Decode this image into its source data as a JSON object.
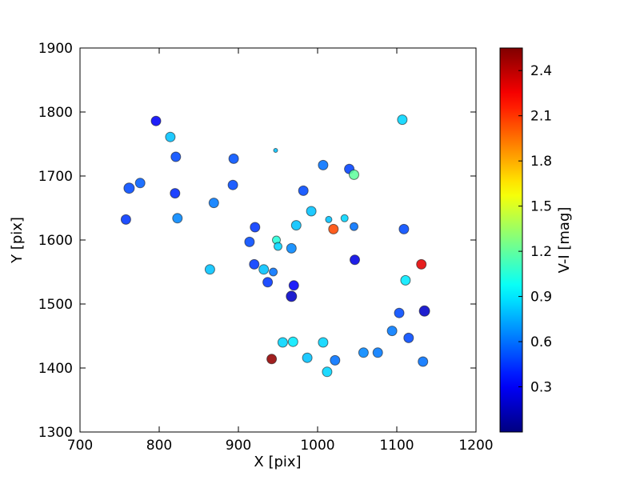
{
  "figure": {
    "background": "#ffffff",
    "text_color": "#000000",
    "axis_color": "#000000"
  },
  "chart_data": {
    "type": "scatter",
    "title": "",
    "xlabel": "X [pix]",
    "ylabel": "Y [pix]",
    "xlim": [
      700,
      1200
    ],
    "ylim": [
      1300,
      1900
    ],
    "xticks": [
      700,
      800,
      900,
      1000,
      1100,
      1200
    ],
    "yticks": [
      1300,
      1400,
      1500,
      1600,
      1700,
      1800,
      1900
    ],
    "grid": false,
    "legend": "none",
    "colorbar": {
      "label": "V-I [mag]",
      "ticks": [
        0.3,
        0.6,
        0.9,
        1.2,
        1.5,
        1.8,
        2.1,
        2.4
      ],
      "vmin": 0.0,
      "vmax": 2.55,
      "colormap": "jet",
      "position": "right"
    },
    "marker": {
      "shape": "circle",
      "edge_color": "#1a1a1a",
      "edge_opacity": 0.6,
      "fill_opacity": 0.88
    },
    "points_format": [
      "x_pix",
      "y_pix",
      "v_i_mag",
      "radius_px"
    ],
    "points": [
      [
        796,
        1786,
        0.3,
        6
      ],
      [
        814,
        1761,
        0.8,
        6
      ],
      [
        821,
        1730,
        0.5,
        6
      ],
      [
        776,
        1689,
        0.55,
        6
      ],
      [
        762,
        1681,
        0.5,
        6.5
      ],
      [
        820,
        1673,
        0.42,
        6
      ],
      [
        823,
        1634,
        0.65,
        6
      ],
      [
        758,
        1632,
        0.45,
        6
      ],
      [
        894,
        1727,
        0.52,
        6
      ],
      [
        893,
        1686,
        0.5,
        6
      ],
      [
        869,
        1658,
        0.62,
        6
      ],
      [
        864,
        1554,
        0.8,
        6
      ],
      [
        947,
        1740,
        0.8,
        2.5
      ],
      [
        1007,
        1717,
        0.6,
        6
      ],
      [
        1040,
        1711,
        0.48,
        6
      ],
      [
        1046,
        1702,
        1.2,
        6
      ],
      [
        982,
        1677,
        0.5,
        6
      ],
      [
        992,
        1645,
        0.8,
        6
      ],
      [
        1034,
        1634,
        0.85,
        4.5
      ],
      [
        1014,
        1632,
        0.8,
        4
      ],
      [
        973,
        1623,
        0.8,
        6
      ],
      [
        1020,
        1617,
        2.05,
        6
      ],
      [
        1046,
        1621,
        0.6,
        5
      ],
      [
        921,
        1620,
        0.45,
        6
      ],
      [
        914,
        1597,
        0.5,
        6
      ],
      [
        948,
        1600,
        1.05,
        5
      ],
      [
        950,
        1590,
        0.85,
        5
      ],
      [
        967,
        1587,
        0.65,
        6
      ],
      [
        920,
        1562,
        0.45,
        6
      ],
      [
        932,
        1554,
        0.8,
        6
      ],
      [
        944,
        1550,
        0.6,
        5
      ],
      [
        937,
        1534,
        0.45,
        6
      ],
      [
        1047,
        1569,
        0.25,
        6
      ],
      [
        970,
        1529,
        0.3,
        6
      ],
      [
        967,
        1512,
        0.18,
        6.5
      ],
      [
        1107,
        1788,
        0.85,
        6
      ],
      [
        1109,
        1617,
        0.5,
        6
      ],
      [
        1131,
        1562,
        2.3,
        6
      ],
      [
        1111,
        1537,
        0.9,
        6
      ],
      [
        1135,
        1489,
        0.18,
        6.5
      ],
      [
        1103,
        1486,
        0.5,
        6
      ],
      [
        1094,
        1458,
        0.62,
        6
      ],
      [
        1115,
        1447,
        0.5,
        6
      ],
      [
        1133,
        1410,
        0.6,
        6
      ],
      [
        1076,
        1424,
        0.62,
        6
      ],
      [
        1058,
        1424,
        0.65,
        6
      ],
      [
        1022,
        1412,
        0.6,
        6
      ],
      [
        1012,
        1394,
        0.85,
        6
      ],
      [
        987,
        1416,
        0.8,
        6
      ],
      [
        969,
        1441,
        0.9,
        6
      ],
      [
        956,
        1440,
        0.85,
        6
      ],
      [
        942,
        1414,
        2.5,
        6
      ],
      [
        1007,
        1440,
        0.85,
        6
      ]
    ]
  }
}
